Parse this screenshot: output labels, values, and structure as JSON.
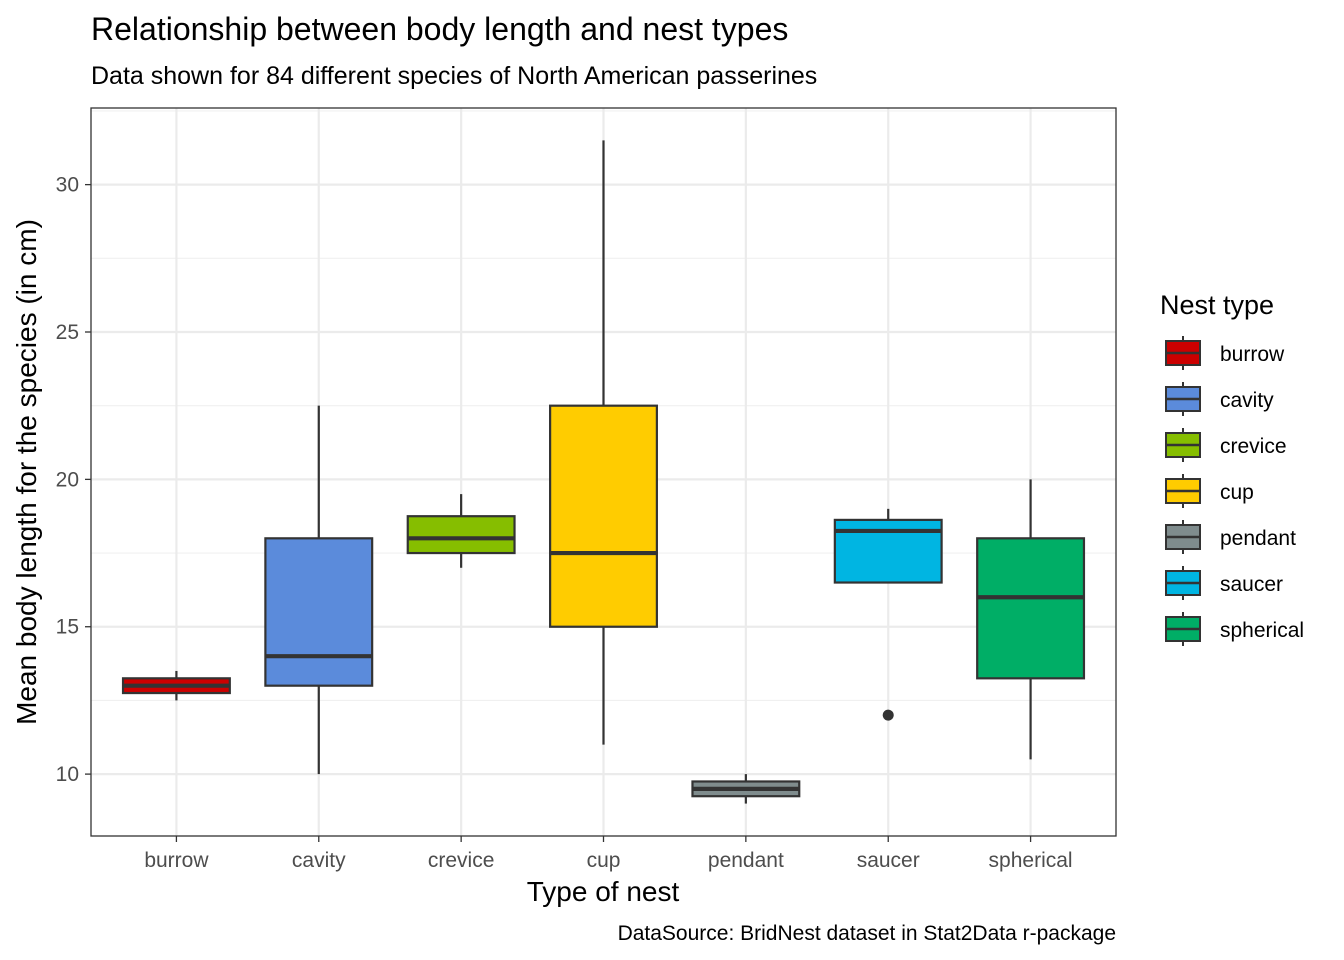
{
  "chart_data": {
    "type": "boxplot",
    "title": "Relationship between body length and nest types",
    "subtitle": "Data shown for 84 different species of North American passerines",
    "caption": "DataSource: BridNest dataset in Stat2Data r-package",
    "xlabel": "Type of nest",
    "ylabel": "Mean body length for the species (in cm)",
    "ylim": [
      7.9,
      32.6
    ],
    "yticks": [
      10,
      15,
      20,
      25,
      30
    ],
    "grid": true,
    "legend": {
      "title": "Nest type",
      "placement": "right"
    },
    "categories": [
      "burrow",
      "cavity",
      "crevice",
      "cup",
      "pendant",
      "saucer",
      "spherical"
    ],
    "boxes": [
      {
        "category": "burrow",
        "min": 12.5,
        "q1": 12.75,
        "median": 13.0,
        "q3": 13.25,
        "max": 13.5,
        "outliers": [],
        "color": "#CC0000"
      },
      {
        "category": "cavity",
        "min": 10.0,
        "q1": 13.0,
        "median": 14.0,
        "q3": 18.0,
        "max": 22.5,
        "outliers": [],
        "color": "#5B8BDB"
      },
      {
        "category": "crevice",
        "min": 17.0,
        "q1": 17.5,
        "median": 18.0,
        "q3": 18.75,
        "max": 19.5,
        "outliers": [],
        "color": "#86BE00"
      },
      {
        "category": "cup",
        "min": 11.0,
        "q1": 15.0,
        "median": 17.5,
        "q3": 22.5,
        "max": 31.5,
        "outliers": [],
        "color": "#FFCC00"
      },
      {
        "category": "pendant",
        "min": 9.0,
        "q1": 9.25,
        "median": 9.5,
        "q3": 9.75,
        "max": 10.0,
        "outliers": [],
        "color": "#7F8C8D"
      },
      {
        "category": "saucer",
        "min": 16.5,
        "q1": 16.5,
        "median": 18.25,
        "q3": 18.625,
        "max": 19.0,
        "outliers": [
          12.0
        ],
        "color": "#00B5E2"
      },
      {
        "category": "spherical",
        "min": 10.5,
        "q1": 13.25,
        "median": 16.0,
        "q3": 18.0,
        "max": 20.0,
        "outliers": [],
        "color": "#00AE66"
      }
    ]
  }
}
